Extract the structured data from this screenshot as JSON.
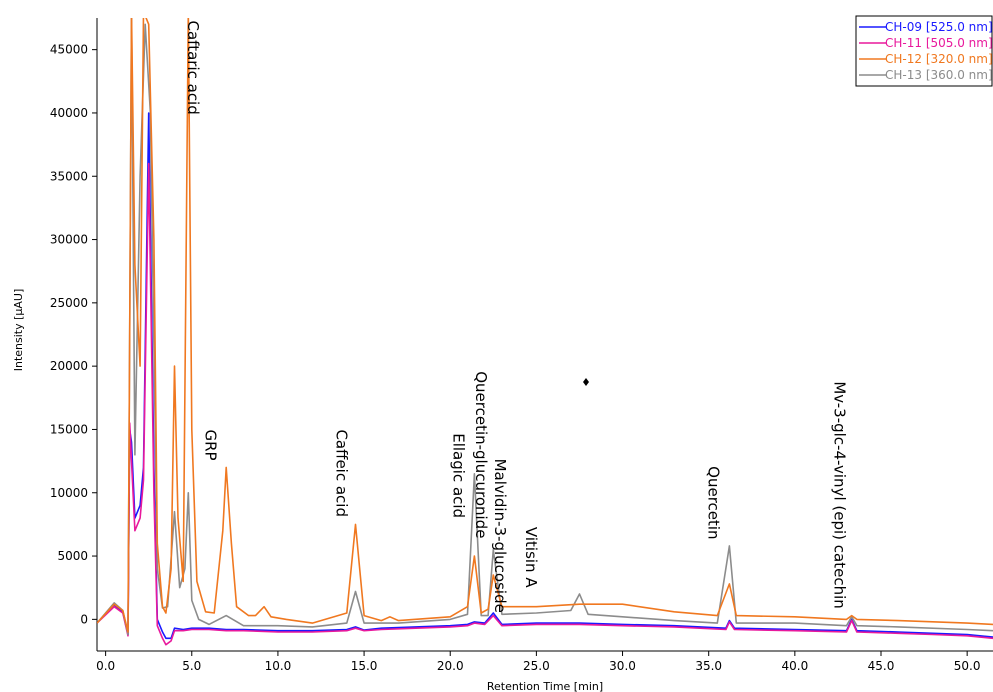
{
  "chart_data": {
    "type": "line",
    "xlabel": "Retention Time [min]",
    "ylabel": "Intensity [µAU]",
    "xlim": [
      -0.5,
      51.5
    ],
    "ylim": [
      -2500,
      47500
    ],
    "x_ticks": [
      0,
      5,
      10,
      15,
      20,
      25,
      30,
      35,
      40,
      45,
      50
    ],
    "x_tick_labels": [
      "0.0",
      "5.0",
      "10.0",
      "15.0",
      "20.0",
      "25.0",
      "30.0",
      "35.0",
      "40.0",
      "45.0",
      "50.0"
    ],
    "y_ticks": [
      0,
      5000,
      10000,
      15000,
      20000,
      25000,
      30000,
      35000,
      40000,
      45000
    ],
    "y_tick_labels": [
      "0",
      "5000",
      "10000",
      "15000",
      "20000",
      "25000",
      "30000",
      "35000",
      "40000",
      "45000"
    ],
    "legend_position": "top-right",
    "series": [
      {
        "name": "CH-09 [525.0 nm]",
        "color": "#1a1aff",
        "x": [
          -0.5,
          0.5,
          1.0,
          1.3,
          1.4,
          1.5,
          1.7,
          2.0,
          2.2,
          2.5,
          2.8,
          3.0,
          3.3,
          3.5,
          3.8,
          4.0,
          4.5,
          5.0,
          6.0,
          7.0,
          8.0,
          10.0,
          12.0,
          14.0,
          14.5,
          15.0,
          16.0,
          18.0,
          20.0,
          21.0,
          21.4,
          22.0,
          22.5,
          23.0,
          25.0,
          27.5,
          30.0,
          33.0,
          36.0,
          36.2,
          36.5,
          40.0,
          43.0,
          43.3,
          43.6,
          46.0,
          48.0,
          50.0,
          51.5
        ],
        "y": [
          -300,
          1100,
          600,
          -1200,
          15000,
          14000,
          8000,
          9000,
          12000,
          40000,
          12000,
          0,
          -1000,
          -1500,
          -1500,
          -700,
          -800,
          -700,
          -700,
          -800,
          -800,
          -900,
          -900,
          -800,
          -600,
          -850,
          -700,
          -600,
          -500,
          -400,
          -200,
          -300,
          500,
          -400,
          -300,
          -300,
          -400,
          -500,
          -700,
          -100,
          -700,
          -800,
          -900,
          0,
          -900,
          -1000,
          -1100,
          -1200,
          -1400
        ]
      },
      {
        "name": "CH-11 [505.0 nm]",
        "color": "#e8199c",
        "x": [
          -0.5,
          0.5,
          1.0,
          1.3,
          1.4,
          1.5,
          1.7,
          2.0,
          2.2,
          2.5,
          2.8,
          3.0,
          3.3,
          3.5,
          3.8,
          4.0,
          4.5,
          5.0,
          6.0,
          7.0,
          8.0,
          10.0,
          12.0,
          14.0,
          14.5,
          15.0,
          16.0,
          18.0,
          20.0,
          21.0,
          21.4,
          22.0,
          22.5,
          23.0,
          25.0,
          27.5,
          30.0,
          33.0,
          36.0,
          36.2,
          36.5,
          40.0,
          43.0,
          43.3,
          43.6,
          46.0,
          48.0,
          50.0,
          51.5
        ],
        "y": [
          -300,
          1000,
          500,
          -1300,
          15500,
          12500,
          7000,
          8000,
          11000,
          36000,
          10000,
          -500,
          -1500,
          -2000,
          -1700,
          -900,
          -900,
          -800,
          -800,
          -900,
          -900,
          -1000,
          -1000,
          -900,
          -700,
          -900,
          -800,
          -700,
          -600,
          -500,
          -300,
          -400,
          300,
          -500,
          -400,
          -400,
          -500,
          -600,
          -800,
          -200,
          -800,
          -900,
          -1000,
          -100,
          -1000,
          -1100,
          -1200,
          -1300,
          -1500
        ]
      },
      {
        "name": "CH-12 [320.0 nm]",
        "color": "#f07820",
        "x": [
          -0.5,
          0.5,
          1.0,
          1.3,
          1.5,
          1.7,
          2.0,
          2.2,
          2.5,
          2.8,
          3.0,
          3.3,
          3.5,
          3.8,
          4.0,
          4.2,
          4.5,
          4.8,
          5.0,
          5.3,
          5.8,
          6.3,
          6.8,
          7.0,
          7.3,
          7.6,
          8.3,
          8.7,
          9.2,
          9.6,
          10.5,
          12.0,
          14.0,
          14.5,
          15.0,
          16.0,
          16.5,
          17.0,
          20.0,
          21.0,
          21.4,
          21.8,
          22.2,
          22.5,
          23.0,
          25.0,
          27.5,
          30.0,
          33.0,
          35.5,
          36.2,
          36.6,
          40.0,
          43.0,
          43.3,
          43.6,
          46.0,
          50.0,
          51.5
        ],
        "y": [
          -300,
          1200,
          700,
          -1000,
          48000,
          28000,
          20000,
          48000,
          47000,
          30000,
          6000,
          1000,
          500,
          4000,
          20000,
          8000,
          3000,
          48000,
          15000,
          3000,
          600,
          500,
          7000,
          12000,
          6000,
          1000,
          300,
          300,
          1000,
          200,
          0,
          -300,
          500,
          7500,
          300,
          -100,
          200,
          -100,
          200,
          1000,
          5000,
          500,
          800,
          3500,
          1000,
          1000,
          1200,
          1200,
          600,
          300,
          2800,
          300,
          200,
          0,
          300,
          0,
          -100,
          -300,
          -400
        ]
      },
      {
        "name": "CH-13 [360.0 nm]",
        "color": "#8c8c8c",
        "x": [
          -0.5,
          0.5,
          1.0,
          1.3,
          1.5,
          1.7,
          2.0,
          2.3,
          2.6,
          3.0,
          3.3,
          3.6,
          4.0,
          4.3,
          4.6,
          4.8,
          5.0,
          5.4,
          6.0,
          7.0,
          8.0,
          10.0,
          12.0,
          14.0,
          14.5,
          15.0,
          17.0,
          20.0,
          21.0,
          21.4,
          21.8,
          22.2,
          22.5,
          23.0,
          25.0,
          27.0,
          27.5,
          28.0,
          30.0,
          33.0,
          35.5,
          36.2,
          36.6,
          40.0,
          43.0,
          43.3,
          43.6,
          46.0,
          50.0,
          51.5
        ],
        "y": [
          -300,
          1300,
          700,
          -1200,
          48000,
          13000,
          35000,
          47000,
          40000,
          4000,
          900,
          1000,
          8500,
          2500,
          4000,
          10000,
          1500,
          0,
          -400,
          300,
          -500,
          -500,
          -600,
          -300,
          2200,
          -300,
          -300,
          0,
          400,
          11500,
          300,
          300,
          5500,
          400,
          500,
          700,
          2000,
          400,
          200,
          -100,
          -300,
          5800,
          -300,
          -300,
          -500,
          200,
          -500,
          -600,
          -800,
          -900
        ]
      }
    ],
    "annotations": [
      {
        "text": "Caftaric acid",
        "x": 5.6,
        "y": 47300
      },
      {
        "text": "GRP",
        "x": 6.6,
        "y": 15000
      },
      {
        "text": "Caffeic acid",
        "x": 14.2,
        "y": 15000
      },
      {
        "text": "Ellagic acid",
        "x": 21.0,
        "y": 14700
      },
      {
        "text": "Quercetin-glucuronide",
        "x": 22.3,
        "y": 19600
      },
      {
        "text": "Malvidin-3-glucoside",
        "x": 23.4,
        "y": 12700
      },
      {
        "text": "Vitisin A",
        "x": 25.2,
        "y": 7300
      },
      {
        "text": "Quercetin",
        "x": 35.8,
        "y": 12100
      },
      {
        "text": "Mv-3-glc-4-vinyl (epi) catechin",
        "x": 43.1,
        "y": 18800
      }
    ]
  }
}
